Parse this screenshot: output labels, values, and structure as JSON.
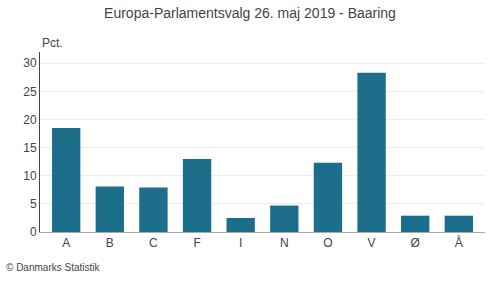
{
  "chart_data": {
    "type": "bar",
    "title": "Europa-Parlamentsvalg 26. maj 2019 - Baaring",
    "categories": [
      "A",
      "B",
      "C",
      "F",
      "I",
      "N",
      "O",
      "V",
      "Ø",
      "Å"
    ],
    "values": [
      18.5,
      8.1,
      7.9,
      13.0,
      2.5,
      4.7,
      12.3,
      28.3,
      2.9,
      2.9
    ],
    "color": "#1c6e8a",
    "ylabel": "Pct.",
    "annotations": [
      "© Danmarks Statistik"
    ],
    "ylim": [
      0,
      32
    ],
    "yticks": [
      0,
      5,
      10,
      15,
      20,
      25,
      30
    ],
    "grid": true
  }
}
